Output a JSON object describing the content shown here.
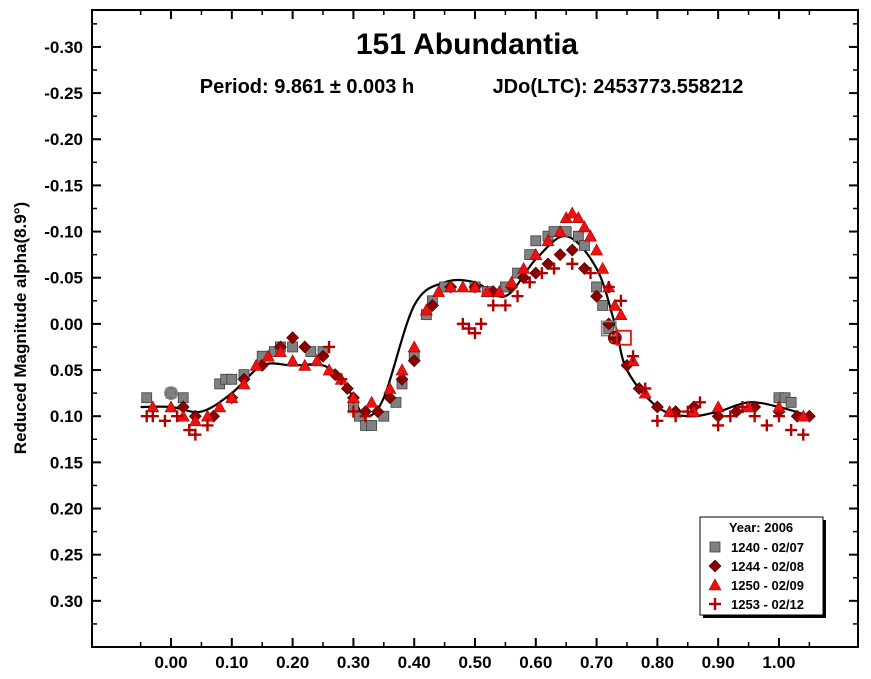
{
  "chart_data": {
    "type": "scatter",
    "title": "151 Abundantia",
    "subtitle_period": "Period: 9.861 ± 0.003 h",
    "subtitle_epoch": "JDo(LTC): 2453773.558212",
    "ylabel": "Reduced Magnitude alpha(8.9°)",
    "xlabel": "",
    "xlim": [
      -0.13,
      1.13
    ],
    "ylim": [
      0.35,
      -0.34
    ],
    "y_inverted": true,
    "grid": false,
    "x_ticks": [
      0.0,
      0.1,
      0.2,
      0.3,
      0.4,
      0.5,
      0.6,
      0.7,
      0.8,
      0.9,
      1.0
    ],
    "x_tick_labels": [
      "0.00",
      "0.10",
      "0.20",
      "0.30",
      "0.40",
      "0.50",
      "0.60",
      "0.70",
      "0.80",
      "0.90",
      "1.00"
    ],
    "y_ticks": [
      -0.3,
      -0.25,
      -0.2,
      -0.15,
      -0.1,
      -0.05,
      0.0,
      0.05,
      0.1,
      0.15,
      0.2,
      0.25,
      0.3
    ],
    "y_tick_labels": [
      "-0.30",
      "-0.25",
      "-0.20",
      "-0.15",
      "-0.10",
      "-0.05",
      "0.00",
      "0.05",
      "0.10",
      "0.15",
      "0.20",
      "0.25",
      "0.30"
    ],
    "legend": {
      "placement": "bottom-right",
      "title": "Year: 2006",
      "entries": [
        {
          "label": "1240 - 02/07",
          "marker": "square",
          "color": "#808080"
        },
        {
          "label": "1244 - 02/08",
          "marker": "diamond",
          "color": "#8b0000"
        },
        {
          "label": "1250 - 02/09",
          "marker": "triangle",
          "color": "#ee1111"
        },
        {
          "label": "1253 - 02/12",
          "marker": "plus",
          "color": "#b00000"
        }
      ]
    },
    "fit_curve": {
      "color": "#000000",
      "x": [
        -0.05,
        0.0,
        0.05,
        0.1,
        0.15,
        0.2,
        0.25,
        0.28,
        0.3,
        0.32,
        0.35,
        0.4,
        0.45,
        0.5,
        0.55,
        0.6,
        0.65,
        0.7,
        0.73,
        0.75,
        0.8,
        0.85,
        0.9,
        0.95,
        1.0,
        1.05
      ],
      "y": [
        0.09,
        0.09,
        0.095,
        0.075,
        0.045,
        0.045,
        0.045,
        0.06,
        0.08,
        0.1,
        0.08,
        -0.02,
        -0.045,
        -0.045,
        -0.03,
        -0.07,
        -0.095,
        -0.06,
        0.0,
        0.05,
        0.09,
        0.1,
        0.095,
        0.085,
        0.09,
        0.1
      ]
    },
    "series": [
      {
        "name": "1240 - 02/07",
        "marker": "square",
        "color": "#808080",
        "x": [
          -0.04,
          0.0,
          0.02,
          0.08,
          0.09,
          0.1,
          0.12,
          0.15,
          0.17,
          0.18,
          0.2,
          0.23,
          0.25,
          0.3,
          0.31,
          0.32,
          0.33,
          0.35,
          0.37,
          0.38,
          0.4,
          0.42,
          0.43,
          0.45,
          0.5,
          0.52,
          0.55,
          0.57,
          0.59,
          0.6,
          0.62,
          0.63,
          0.65,
          0.67,
          0.68,
          0.7,
          0.71,
          0.72,
          1.0,
          1.01,
          1.02
        ],
        "y": [
          0.08,
          0.075,
          0.08,
          0.065,
          0.06,
          0.06,
          0.055,
          0.035,
          0.03,
          0.025,
          0.025,
          0.03,
          0.03,
          0.09,
          0.1,
          0.11,
          0.11,
          0.1,
          0.085,
          0.065,
          0.035,
          -0.01,
          -0.025,
          -0.04,
          -0.04,
          -0.035,
          -0.04,
          -0.055,
          -0.075,
          -0.09,
          -0.095,
          -0.1,
          -0.1,
          -0.095,
          -0.085,
          -0.04,
          -0.02,
          0.005,
          0.08,
          0.08,
          0.085
        ]
      },
      {
        "name": "1244 - 02/08",
        "marker": "diamond",
        "color": "#8b0000",
        "x": [
          0.02,
          0.04,
          0.07,
          0.1,
          0.12,
          0.15,
          0.18,
          0.2,
          0.22,
          0.25,
          0.27,
          0.29,
          0.3,
          0.32,
          0.34,
          0.36,
          0.38,
          0.4,
          0.43,
          0.46,
          0.5,
          0.53,
          0.56,
          0.58,
          0.6,
          0.62,
          0.64,
          0.66,
          0.68,
          0.7,
          0.72,
          0.73,
          0.75,
          0.77,
          0.8,
          0.83,
          0.86,
          0.9,
          0.93,
          0.96,
          1.0,
          1.03,
          1.05
        ],
        "y": [
          0.09,
          0.1,
          0.1,
          0.08,
          0.06,
          0.045,
          0.025,
          0.015,
          0.025,
          0.035,
          0.055,
          0.07,
          0.08,
          0.095,
          0.095,
          0.08,
          0.06,
          0.04,
          -0.02,
          -0.04,
          -0.04,
          -0.035,
          -0.04,
          -0.05,
          -0.055,
          -0.065,
          -0.075,
          -0.08,
          -0.06,
          -0.03,
          0.0,
          0.015,
          0.045,
          0.07,
          0.09,
          0.095,
          0.09,
          0.1,
          0.095,
          0.09,
          0.095,
          0.1,
          0.1
        ]
      },
      {
        "name": "1250 - 02/09",
        "marker": "triangle",
        "color": "#ee1111",
        "x": [
          -0.03,
          0.0,
          0.02,
          0.04,
          0.06,
          0.08,
          0.1,
          0.12,
          0.14,
          0.16,
          0.18,
          0.2,
          0.22,
          0.24,
          0.26,
          0.28,
          0.3,
          0.33,
          0.36,
          0.38,
          0.4,
          0.42,
          0.44,
          0.46,
          0.48,
          0.5,
          0.52,
          0.54,
          0.56,
          0.58,
          0.6,
          0.62,
          0.64,
          0.65,
          0.66,
          0.67,
          0.68,
          0.69,
          0.7,
          0.71,
          0.72,
          0.73,
          0.74,
          0.76,
          0.78,
          0.82,
          0.86,
          0.9,
          0.95,
          1.0,
          1.04
        ],
        "y": [
          0.09,
          0.09,
          0.1,
          0.105,
          0.1,
          0.09,
          0.08,
          0.065,
          0.045,
          0.035,
          0.03,
          0.04,
          0.045,
          0.04,
          0.05,
          0.06,
          0.08,
          0.085,
          0.07,
          0.05,
          0.025,
          -0.015,
          -0.035,
          -0.04,
          -0.04,
          -0.04,
          -0.035,
          -0.035,
          -0.045,
          -0.06,
          -0.075,
          -0.09,
          -0.1,
          -0.115,
          -0.12,
          -0.115,
          -0.105,
          -0.095,
          -0.08,
          -0.06,
          -0.04,
          -0.02,
          -0.01,
          0.04,
          0.075,
          0.095,
          0.095,
          0.09,
          0.09,
          0.09,
          0.1
        ]
      },
      {
        "name": "1253 - 02/12",
        "marker": "plus",
        "color": "#b00000",
        "x": [
          -0.04,
          -0.03,
          -0.01,
          0.01,
          0.03,
          0.04,
          0.06,
          0.26,
          0.28,
          0.3,
          0.32,
          0.48,
          0.49,
          0.5,
          0.51,
          0.53,
          0.55,
          0.57,
          0.59,
          0.61,
          0.63,
          0.66,
          0.69,
          0.72,
          0.74,
          0.76,
          0.78,
          0.8,
          0.83,
          0.85,
          0.87,
          0.9,
          0.92,
          0.94,
          0.96,
          0.98,
          1.0,
          1.02,
          1.04
        ],
        "y": [
          0.1,
          0.1,
          0.105,
          0.1,
          0.115,
          0.12,
          0.11,
          0.025,
          0.06,
          0.095,
          0.1,
          0.0,
          0.005,
          0.01,
          0.0,
          -0.02,
          -0.02,
          -0.03,
          -0.045,
          -0.055,
          -0.06,
          -0.065,
          -0.055,
          -0.04,
          -0.025,
          0.035,
          0.07,
          0.105,
          0.1,
          0.095,
          0.085,
          0.11,
          0.1,
          0.09,
          0.1,
          0.11,
          0.1,
          0.115,
          0.12
        ]
      }
    ],
    "annotation_markers": [
      {
        "x": 0.0,
        "y": 0.075,
        "shape": "circle-open",
        "color": "#808080"
      },
      {
        "x": 0.72,
        "y": 0.005,
        "shape": "square-open",
        "color": "#808080"
      },
      {
        "x": 0.73,
        "y": 0.015,
        "shape": "circle-open",
        "color": "#8b0000"
      },
      {
        "x": 0.745,
        "y": 0.015,
        "shape": "square-open",
        "color": "#ee1111"
      }
    ]
  }
}
